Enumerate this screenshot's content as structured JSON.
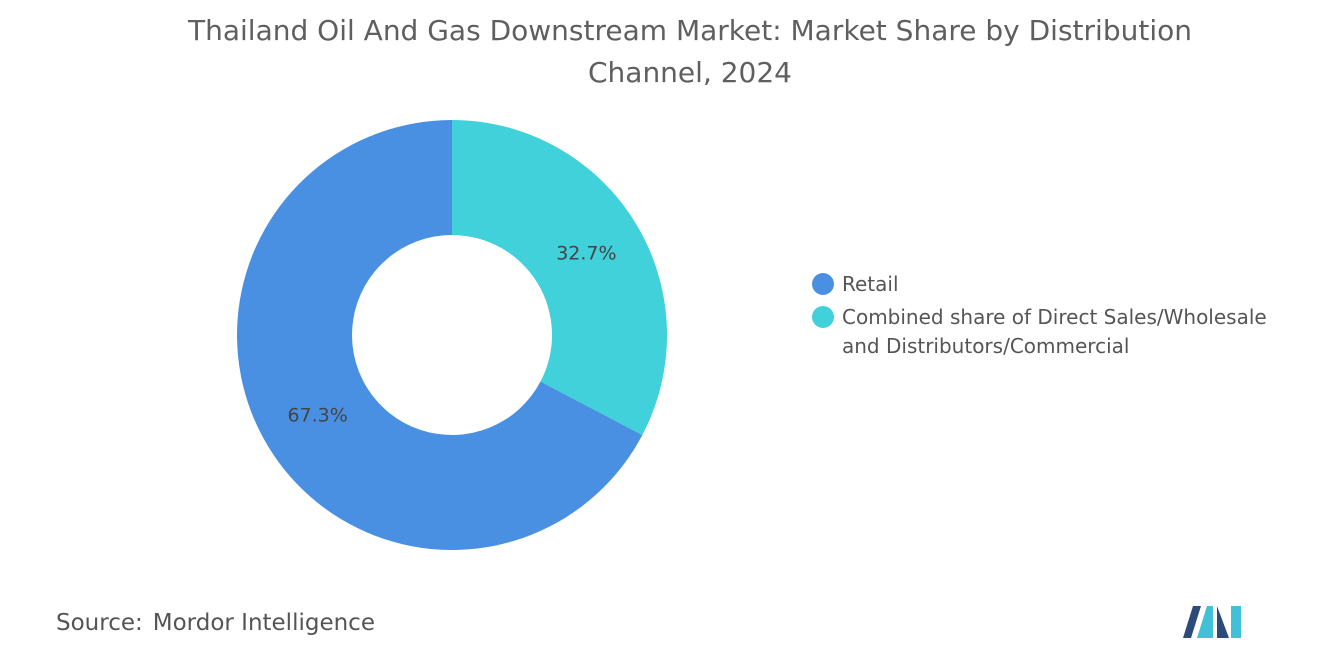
{
  "chart_data": {
    "type": "pie",
    "title": "Thailand Oil And Gas Downstream Market: Market Share by Distribution Channel, 2024",
    "categories": [
      "Retail",
      "Combined share of Direct Sales/Wholesale and Distributors/Commercial"
    ],
    "values": [
      67.3,
      32.7
    ],
    "value_labels": [
      "67.3%",
      "32.7%"
    ],
    "colors": [
      "#4a90e2",
      "#41d1db"
    ],
    "donut": true,
    "source_label": "Source:",
    "source": "Mordor Intelligence"
  }
}
